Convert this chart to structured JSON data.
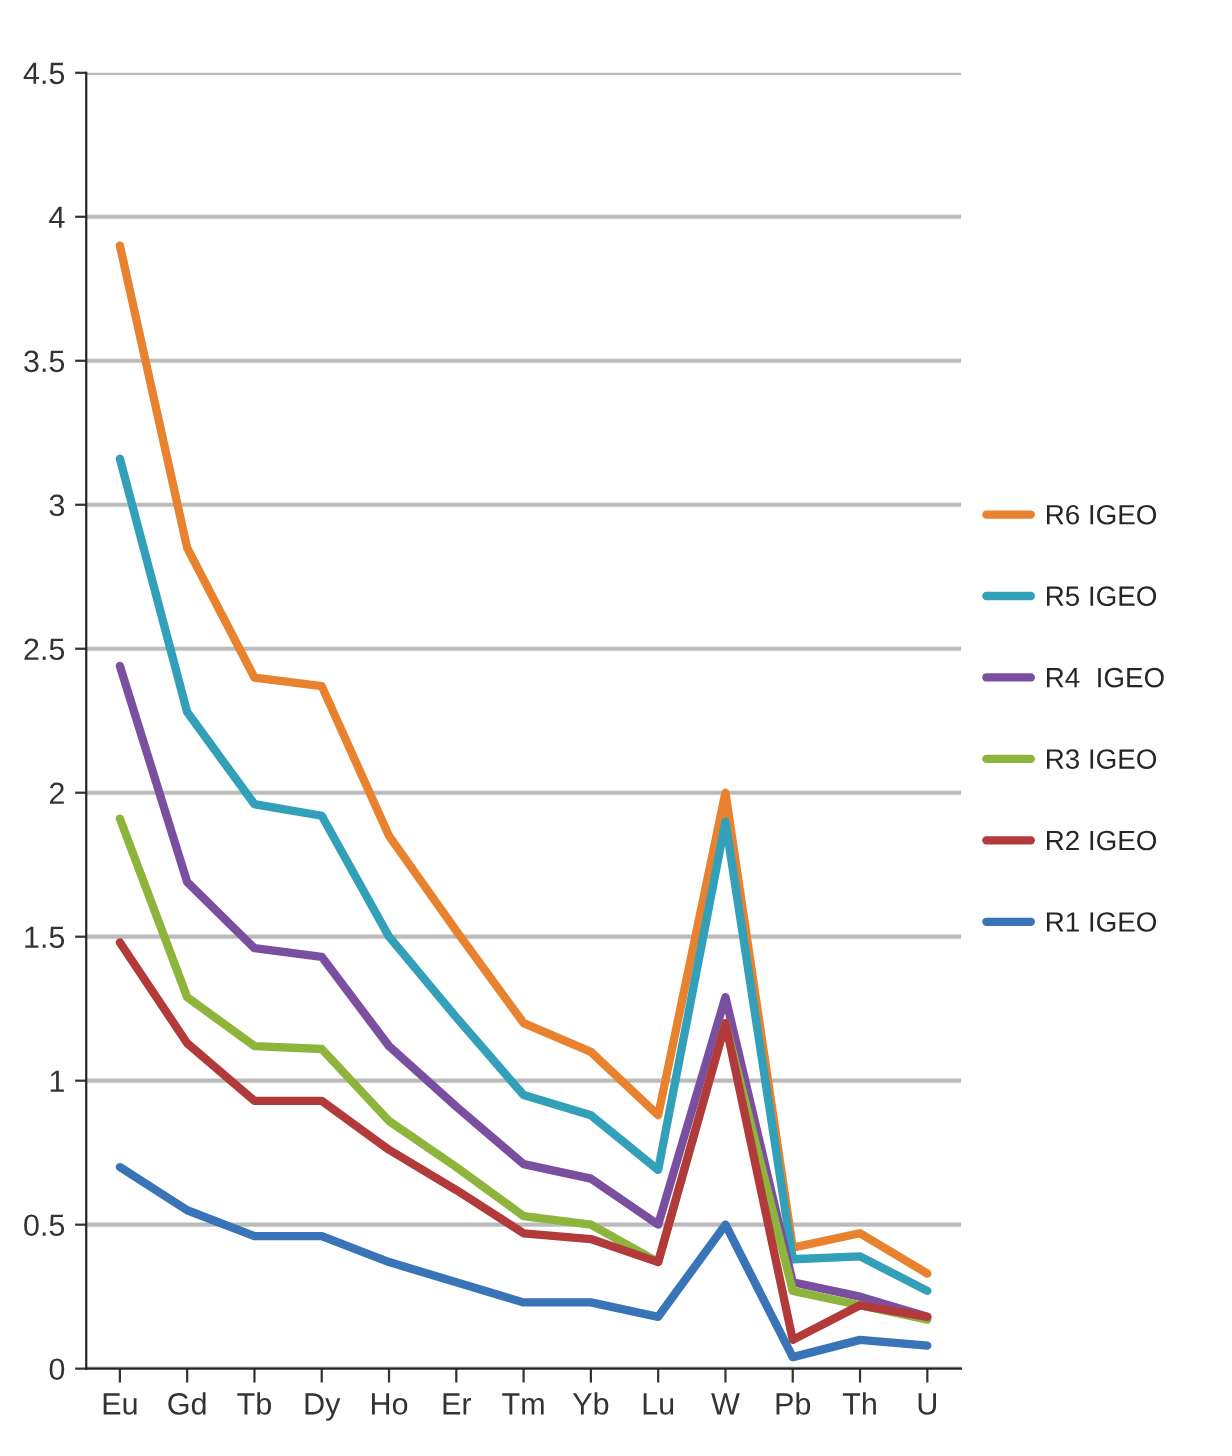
{
  "chart_data": {
    "type": "line",
    "categories": [
      "Eu",
      "Gd",
      "Tb",
      "Dy",
      "Ho",
      "Er",
      "Tm",
      "Yb",
      "Lu",
      "W",
      "Pb",
      "Th",
      "U"
    ],
    "series": [
      {
        "name": "R6 IGEO",
        "color": "#e8822e",
        "values": [
          3.9,
          2.85,
          2.4,
          2.37,
          1.85,
          1.52,
          1.2,
          1.1,
          0.88,
          2.0,
          0.42,
          0.47,
          0.33
        ]
      },
      {
        "name": "R5 IGEO",
        "color": "#31a0b8",
        "values": [
          3.16,
          2.28,
          1.96,
          1.92,
          1.5,
          1.22,
          0.95,
          0.88,
          0.69,
          1.9,
          0.38,
          0.39,
          0.27
        ]
      },
      {
        "name": "R4  IGEO",
        "color": "#7a4fa0",
        "values": [
          2.44,
          1.69,
          1.46,
          1.43,
          1.12,
          0.91,
          0.71,
          0.66,
          0.5,
          1.29,
          0.3,
          0.25,
          0.18
        ]
      },
      {
        "name": "R3 IGEO",
        "color": "#8db43b",
        "values": [
          1.91,
          1.29,
          1.12,
          1.11,
          0.86,
          0.7,
          0.53,
          0.5,
          0.37,
          1.2,
          0.27,
          0.22,
          0.17
        ]
      },
      {
        "name": "R2 IGEO",
        "color": "#b33a3a",
        "values": [
          1.48,
          1.13,
          0.93,
          0.93,
          0.76,
          0.62,
          0.47,
          0.45,
          0.37,
          1.2,
          0.1,
          0.22,
          0.18
        ]
      },
      {
        "name": "R1 IGEO",
        "color": "#3a74b8",
        "values": [
          0.7,
          0.55,
          0.46,
          0.46,
          0.37,
          0.3,
          0.23,
          0.23,
          0.18,
          0.5,
          0.04,
          0.1,
          0.08
        ]
      }
    ],
    "ylim": [
      0,
      4.5
    ],
    "yticks": [
      0,
      0.5,
      1,
      1.5,
      2,
      2.5,
      3,
      3.5,
      4,
      4.5
    ],
    "grid": "y",
    "legend": "right",
    "marker": "none",
    "line_style": "solid"
  }
}
